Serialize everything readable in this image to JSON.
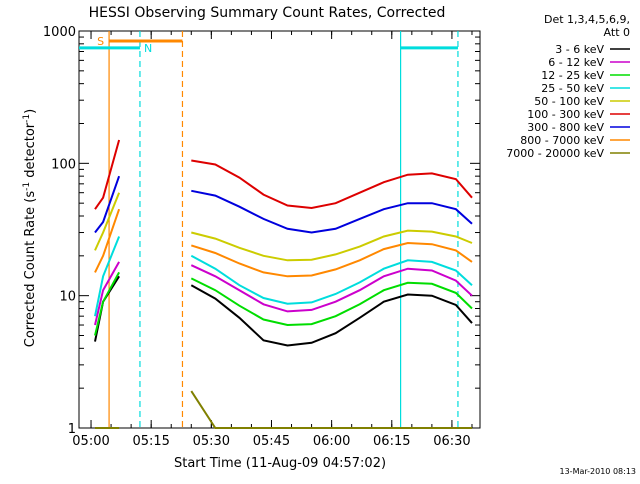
{
  "chart_data": {
    "type": "line",
    "title": "HESSI Observing Summary Count Rates, Corrected",
    "xlabel": "Start Time (11-Aug-09 04:57:02)",
    "ylabel_main": "Corrected Count Rate (s",
    "ylabel_sup1": "-1",
    "ylabel_mid": " detector",
    "ylabel_sup2": "-1",
    "ylabel_end": ")",
    "x_unit": "minutes after 04:57:02",
    "xlim": [
      0,
      100
    ],
    "ylim": [
      1,
      1000
    ],
    "y_scale": "log",
    "x_ticks": [
      {
        "label": "05:00",
        "value": 3
      },
      {
        "label": "05:15",
        "value": 18
      },
      {
        "label": "05:30",
        "value": 33
      },
      {
        "label": "05:45",
        "value": 48
      },
      {
        "label": "06:00",
        "value": 63
      },
      {
        "label": "06:15",
        "value": 78
      },
      {
        "label": "06:30",
        "value": 93
      }
    ],
    "y_ticks": [
      {
        "label": "1",
        "value": 1
      },
      {
        "label": "10",
        "value": 10
      },
      {
        "label": "100",
        "value": 100
      },
      {
        "label": "1000",
        "value": 1000
      }
    ],
    "legend": {
      "position": "right",
      "header1": "Det 1,3,4,5,6,9,",
      "header2": "Att 0"
    },
    "series": [
      {
        "name": "3 - 6 keV",
        "color": "#000000",
        "x": [
          4,
          6,
          10,
          24,
          28,
          34,
          40,
          46,
          52,
          58,
          64,
          70,
          76,
          82,
          88,
          94,
          98
        ],
        "y": [
          4.5,
          9,
          14,
          null,
          12,
          9.5,
          6.8,
          4.6,
          4.2,
          4.4,
          5.2,
          6.8,
          9,
          10.2,
          10,
          8.5,
          6.2
        ]
      },
      {
        "name": "6 - 12 keV",
        "color": "#cc00cc",
        "x": [
          4,
          6,
          10,
          24,
          28,
          34,
          40,
          46,
          52,
          58,
          64,
          70,
          76,
          82,
          88,
          94,
          98
        ],
        "y": [
          6,
          11,
          18,
          null,
          17,
          14,
          11,
          8.6,
          7.6,
          7.8,
          9,
          11,
          14,
          16,
          15.5,
          13,
          10
        ]
      },
      {
        "name": "12 - 25 keV",
        "color": "#00dd00",
        "x": [
          4,
          6,
          10,
          24,
          28,
          34,
          40,
          46,
          52,
          58,
          64,
          70,
          76,
          82,
          88,
          94,
          98
        ],
        "y": [
          5,
          9,
          15,
          null,
          13.5,
          11,
          8.4,
          6.6,
          6,
          6.1,
          7,
          8.6,
          11,
          12.5,
          12.3,
          10.5,
          8
        ]
      },
      {
        "name": "25 - 50 keV",
        "color": "#00dddd",
        "x": [
          4,
          6,
          10,
          24,
          28,
          34,
          40,
          46,
          52,
          58,
          64,
          70,
          76,
          82,
          88,
          94,
          98
        ],
        "y": [
          7,
          14,
          28,
          null,
          20,
          16,
          12,
          9.6,
          8.7,
          8.9,
          10.3,
          12.6,
          16,
          18.5,
          18,
          15.5,
          12
        ]
      },
      {
        "name": "50 - 100 keV",
        "color": "#cccc00",
        "x": [
          4,
          6,
          10,
          24,
          28,
          34,
          40,
          46,
          52,
          58,
          64,
          70,
          76,
          82,
          88,
          94,
          98
        ],
        "y": [
          22,
          30,
          60,
          null,
          30,
          27,
          23,
          20,
          18.5,
          18.7,
          20.5,
          23.5,
          28,
          31,
          30.5,
          28,
          25
        ]
      },
      {
        "name": "100 - 300 keV",
        "color": "#dd0000",
        "x": [
          4,
          6,
          10,
          24,
          28,
          34,
          40,
          46,
          52,
          58,
          64,
          70,
          76,
          82,
          88,
          94,
          98
        ],
        "y": [
          45,
          55,
          150,
          null,
          105,
          98,
          78,
          58,
          48,
          46,
          50,
          60,
          72,
          82,
          84,
          76,
          55
        ]
      },
      {
        "name": "300 - 800 keV",
        "color": "#0000dd",
        "x": [
          4,
          6,
          10,
          24,
          28,
          34,
          40,
          46,
          52,
          58,
          64,
          70,
          76,
          82,
          88,
          94,
          98
        ],
        "y": [
          30,
          36,
          80,
          null,
          62,
          57,
          47,
          38,
          32,
          30,
          32,
          38,
          45,
          50,
          50,
          45,
          35
        ]
      },
      {
        "name": "800 - 7000 keV",
        "color": "#ff8800",
        "x": [
          4,
          6,
          10,
          24,
          28,
          34,
          40,
          46,
          52,
          58,
          64,
          70,
          76,
          82,
          88,
          94,
          98
        ],
        "y": [
          15,
          20,
          45,
          null,
          24,
          21,
          17.5,
          15,
          14,
          14.2,
          15.8,
          18.5,
          22.5,
          25,
          24.5,
          22,
          18
        ]
      },
      {
        "name": "7000 - 20000 keV",
        "color": "#808000",
        "x": [
          4,
          6,
          10,
          24,
          28,
          34,
          40,
          46,
          52,
          58,
          64,
          70,
          76,
          82,
          88,
          94,
          98
        ],
        "y": [
          1,
          1,
          1,
          null,
          1.9,
          1,
          1,
          1,
          1,
          1,
          1,
          1,
          1,
          1,
          1,
          1,
          1
        ]
      }
    ],
    "vertical_lines": [
      {
        "label": "S",
        "x": 7.5,
        "color": "#ff8800",
        "style": "solid"
      },
      {
        "label": "",
        "x": 25.8,
        "color": "#ff8800",
        "style": "dashed"
      },
      {
        "label": "N",
        "x": 15.2,
        "color": "#00dddd",
        "style": "dashed"
      },
      {
        "label": "",
        "x": 80.2,
        "color": "#00dddd",
        "style": "solid"
      },
      {
        "label": "",
        "x": 94.5,
        "color": "#00dddd",
        "style": "dashed"
      }
    ],
    "flag_bars": [
      {
        "label": "S",
        "x_start": 7.5,
        "x_end": 25.8,
        "color": "#ff8800",
        "level": 1000
      },
      {
        "label": "N",
        "x_start": 0,
        "x_end": 15.2,
        "color": "#00dddd",
        "level": 800
      },
      {
        "label": "",
        "x_start": 80.2,
        "x_end": 94.5,
        "color": "#00dddd",
        "level": 800
      }
    ]
  },
  "footer_date": "13-Mar-2010 08:13"
}
